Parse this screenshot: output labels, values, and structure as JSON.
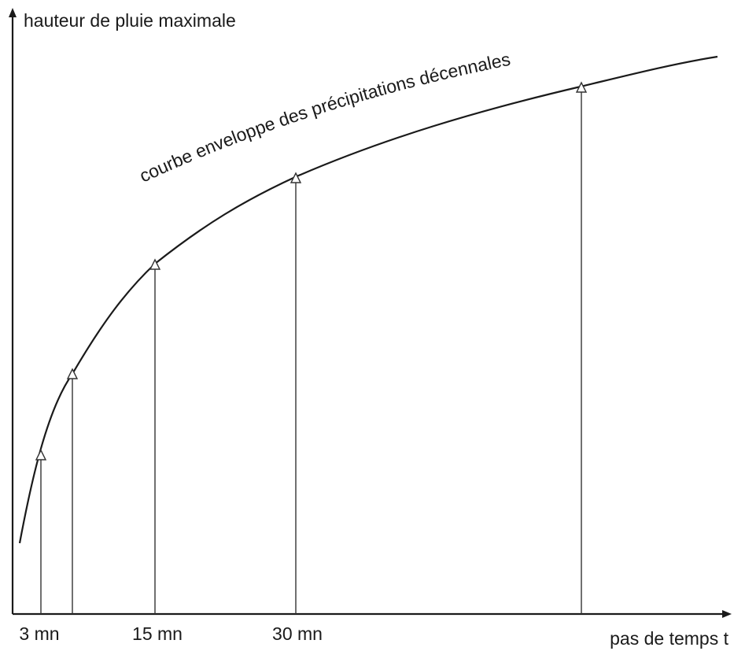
{
  "y_axis_label": "hauteur de pluie maximale",
  "curve_label": "courbe enveloppe des précipitations décennales",
  "x_labels": [
    "3 mn",
    "15 mn",
    "30 mn"
  ],
  "x_axis_label": "pas de temps t"
}
